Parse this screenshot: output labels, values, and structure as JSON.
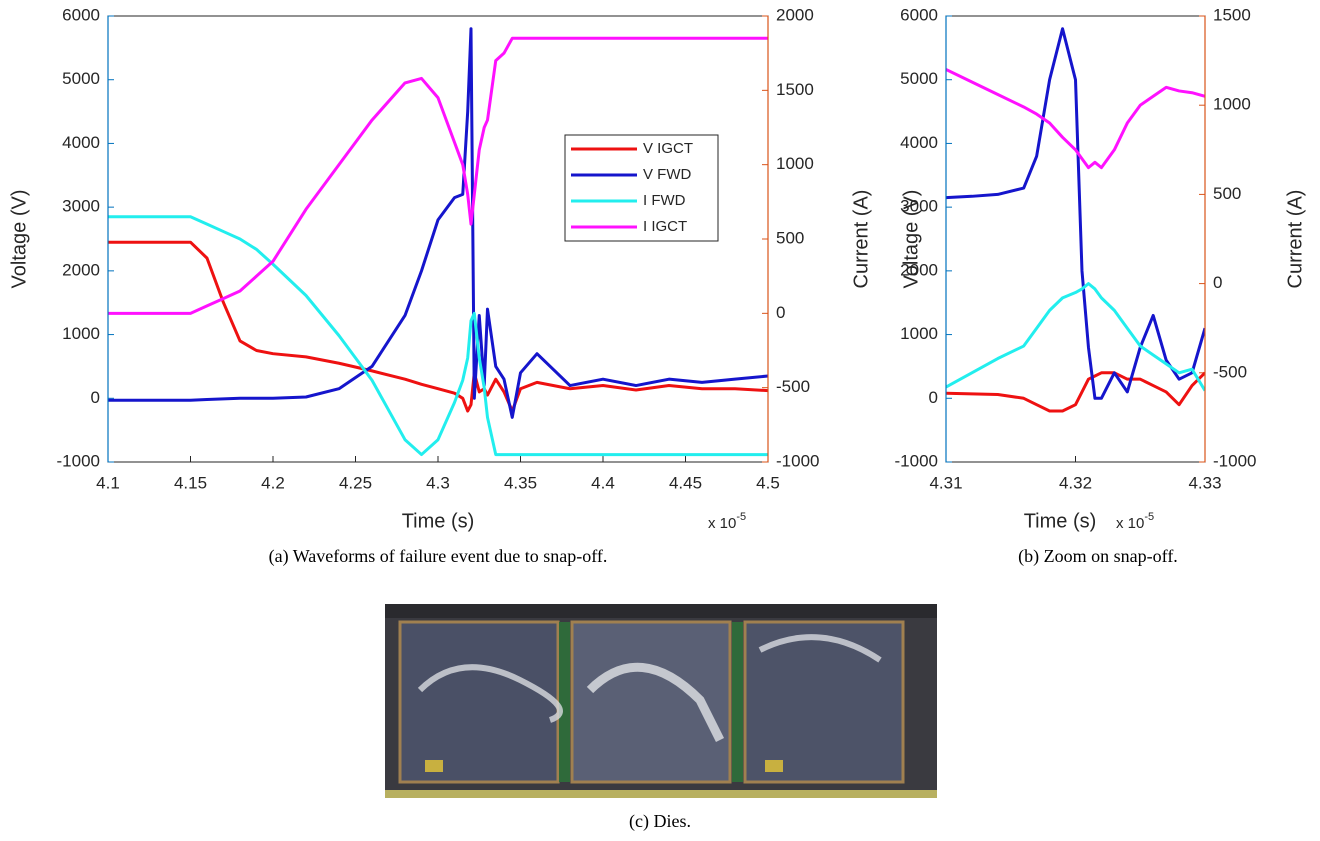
{
  "chart_data": [
    {
      "type": "line",
      "x_label": "Time (s)",
      "x_scale_base": "x 10",
      "x_scale_exponent": "-5",
      "y_label": "Voltage (V)",
      "y2_label": "Current (A)",
      "xlim": [
        4.1,
        4.5
      ],
      "xticks": [
        4.1,
        4.15,
        4.2,
        4.25,
        4.3,
        4.35,
        4.4,
        4.45,
        4.5
      ],
      "ylim": [
        -1000,
        6000
      ],
      "yticks": [
        -1000,
        0,
        1000,
        2000,
        3000,
        4000,
        5000,
        6000
      ],
      "y2lim": [
        -1000,
        2000
      ],
      "y2ticks": [
        -1000,
        -500,
        0,
        500,
        1000,
        1500,
        2000
      ],
      "y_color": "#0072bd",
      "y2_color": "#d95319",
      "x": [
        4.1,
        4.12,
        4.14,
        4.15,
        4.16,
        4.17,
        4.18,
        4.19,
        4.2,
        4.22,
        4.24,
        4.26,
        4.28,
        4.29,
        4.3,
        4.31,
        4.315,
        4.318,
        4.32,
        4.322,
        4.325,
        4.328,
        4.33,
        4.335,
        4.34,
        4.345,
        4.35,
        4.36,
        4.38,
        4.4,
        4.42,
        4.44,
        4.46,
        4.48,
        4.5
      ],
      "series": [
        {
          "name": "V IGCT",
          "color": "#ee1111",
          "axis": "y",
          "values": [
            2450,
            2450,
            2450,
            2450,
            2200,
            1500,
            900,
            750,
            700,
            650,
            550,
            430,
            300,
            220,
            150,
            80,
            0,
            -200,
            -100,
            400,
            100,
            150,
            50,
            300,
            100,
            -200,
            150,
            250,
            150,
            200,
            130,
            200,
            150,
            150,
            120
          ]
        },
        {
          "name": "V FWD",
          "color": "#1515cc",
          "axis": "y",
          "values": [
            -30,
            -30,
            -30,
            -30,
            -20,
            -10,
            0,
            0,
            0,
            20,
            150,
            500,
            1300,
            2000,
            2800,
            3150,
            3200,
            4500,
            5800,
            0,
            1300,
            200,
            1400,
            500,
            300,
            -300,
            400,
            700,
            200,
            300,
            200,
            300,
            250,
            300,
            350
          ]
        },
        {
          "name": "I FWD",
          "color": "#22eeee",
          "axis": "y2",
          "values": [
            650,
            650,
            650,
            650,
            600,
            550,
            500,
            430,
            330,
            120,
            -150,
            -450,
            -850,
            -950,
            -850,
            -600,
            -450,
            -300,
            -50,
            0,
            -300,
            -500,
            -700,
            -950,
            -950,
            -950,
            -950,
            -950,
            -950,
            -950,
            -950,
            -950,
            -950,
            -950,
            -950
          ]
        },
        {
          "name": "I IGCT",
          "color": "#ff11ff",
          "axis": "y2",
          "values": [
            0,
            0,
            0,
            0,
            50,
            100,
            150,
            250,
            350,
            700,
            1000,
            1300,
            1550,
            1580,
            1450,
            1150,
            1000,
            800,
            600,
            800,
            1100,
            1250,
            1300,
            1700,
            1750,
            1850,
            1850,
            1850,
            1850,
            1850,
            1850,
            1850,
            1850,
            1850,
            1850
          ]
        }
      ]
    },
    {
      "type": "line",
      "x_label": "Time (s)",
      "x_scale_base": "x 10",
      "x_scale_exponent": "-5",
      "y_label": "Voltage (V)",
      "y2_label": "Current (A)",
      "xlim": [
        4.31,
        4.33
      ],
      "xticks": [
        4.31,
        4.32,
        4.33
      ],
      "ylim": [
        -1000,
        6000
      ],
      "yticks": [
        -1000,
        0,
        1000,
        2000,
        3000,
        4000,
        5000,
        6000
      ],
      "y2lim": [
        -1000,
        1500
      ],
      "y2ticks": [
        -1000,
        -500,
        0,
        500,
        1000,
        1500
      ],
      "y_color": "#0072bd",
      "y2_color": "#d95319",
      "x": [
        4.31,
        4.312,
        4.314,
        4.316,
        4.317,
        4.318,
        4.319,
        4.32,
        4.3205,
        4.321,
        4.3215,
        4.322,
        4.323,
        4.324,
        4.325,
        4.326,
        4.327,
        4.328,
        4.329,
        4.33
      ],
      "series": [
        {
          "color": "#ee1111",
          "axis": "y",
          "values": [
            80,
            70,
            60,
            0,
            -100,
            -200,
            -200,
            -100,
            100,
            300,
            350,
            400,
            400,
            300,
            300,
            200,
            100,
            -100,
            200,
            400
          ]
        },
        {
          "color": "#1515cc",
          "axis": "y",
          "values": [
            3150,
            3170,
            3200,
            3300,
            3800,
            5000,
            5800,
            5000,
            2000,
            800,
            0,
            0,
            400,
            100,
            800,
            1300,
            600,
            300,
            400,
            1100
          ]
        },
        {
          "color": "#22eeee",
          "axis": "y2",
          "values": [
            -580,
            -500,
            -420,
            -350,
            -250,
            -150,
            -80,
            -50,
            -30,
            0,
            -30,
            -80,
            -150,
            -250,
            -350,
            -400,
            -450,
            -500,
            -480,
            -600
          ]
        },
        {
          "color": "#ff11ff",
          "axis": "y2",
          "values": [
            1200,
            1130,
            1060,
            990,
            950,
            900,
            820,
            750,
            700,
            650,
            680,
            650,
            750,
            900,
            1000,
            1050,
            1100,
            1080,
            1070,
            1050
          ]
        }
      ]
    }
  ],
  "captions": [
    "(a) Waveforms of failure event due to snap-off.",
    "(b) Zoom on snap-off.",
    "(c) Dies."
  ]
}
